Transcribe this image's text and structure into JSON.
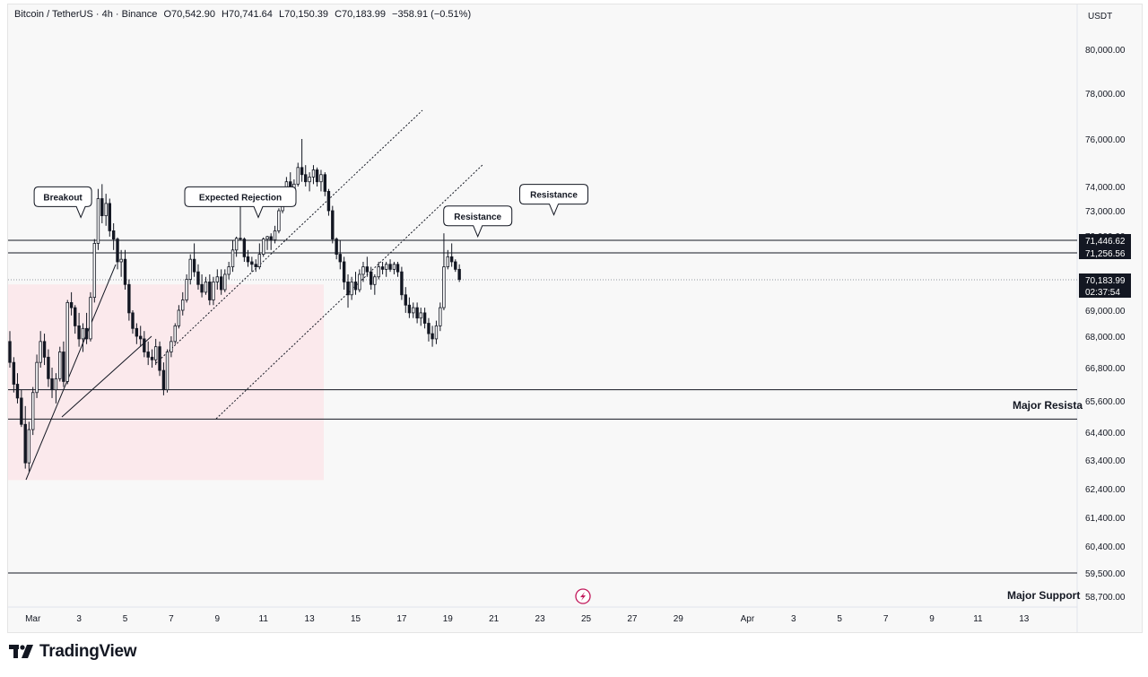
{
  "header": {
    "symbol": "Bitcoin / TetherUS · 4h · Binance",
    "open": "O70,542.90",
    "high": "H70,741.64",
    "low": "L70,150.39",
    "close": "C70,183.99",
    "change": "−358.91 (−0.51%)"
  },
  "currency": "USDT",
  "brand": "TradingView",
  "chart_data": {
    "type": "candlestick",
    "price_labels": [
      {
        "price": 80000,
        "label": "80,000.00"
      },
      {
        "price": 78000,
        "label": "78,000.00"
      },
      {
        "price": 76000,
        "label": "76,000.00"
      },
      {
        "price": 74000,
        "label": "74,000.00"
      },
      {
        "price": 73000,
        "label": "73,000.00"
      },
      {
        "price": 72000,
        "label": "72,000.00"
      },
      {
        "price": 69000,
        "label": "69,000.00"
      },
      {
        "price": 68000,
        "label": "68,000.00"
      },
      {
        "price": 66800,
        "label": "66,800.00"
      },
      {
        "price": 65600,
        "label": "65,600.00"
      },
      {
        "price": 64400,
        "label": "64,400.00"
      },
      {
        "price": 63400,
        "label": "63,400.00"
      },
      {
        "price": 62400,
        "label": "62,400.00"
      },
      {
        "price": 61400,
        "label": "61,400.00"
      },
      {
        "price": 60400,
        "label": "60,400.00"
      },
      {
        "price": 59500,
        "label": "59,500.00"
      },
      {
        "price": 58700,
        "label": "58,700.00"
      }
    ],
    "x_ticks": [
      {
        "day": 1,
        "label": "Mar"
      },
      {
        "day": 3,
        "label": "3"
      },
      {
        "day": 5,
        "label": "5"
      },
      {
        "day": 7,
        "label": "7"
      },
      {
        "day": 9,
        "label": "9"
      },
      {
        "day": 11,
        "label": "11"
      },
      {
        "day": 13,
        "label": "13"
      },
      {
        "day": 15,
        "label": "15"
      },
      {
        "day": 17,
        "label": "17"
      },
      {
        "day": 19,
        "label": "19"
      },
      {
        "day": 21,
        "label": "21"
      },
      {
        "day": 23,
        "label": "23"
      },
      {
        "day": 25,
        "label": "25"
      },
      {
        "day": 27,
        "label": "27"
      },
      {
        "day": 29,
        "label": "29"
      },
      {
        "day": 32,
        "label": "Apr"
      },
      {
        "day": 34,
        "label": "3"
      },
      {
        "day": 36,
        "label": "5"
      },
      {
        "day": 38,
        "label": "7"
      },
      {
        "day": 40,
        "label": "9"
      },
      {
        "day": 42,
        "label": "11"
      },
      {
        "day": 44,
        "label": "13"
      }
    ],
    "levels": [
      {
        "price": 71446.62,
        "label": "71,446.62"
      },
      {
        "price": 71256.56,
        "label": "71,256.56"
      }
    ],
    "last_price": {
      "price": 70183.99,
      "label": "70,183.99",
      "countdown": "02:37:54"
    },
    "zones": [
      {
        "name": "Major Resistance",
        "label": "Major Resista",
        "top": 66000,
        "bottom": 64900
      },
      {
        "name": "Major Support",
        "label": "Major Support",
        "price": 59500
      }
    ],
    "annotations": [
      {
        "text": "Breakout",
        "day": 2.3,
        "price": 72700
      },
      {
        "text": "Expected Rejection",
        "day": 10.0,
        "price": 72700
      },
      {
        "text": "Resistance",
        "day": 20.3,
        "price": 71800
      },
      {
        "text": "Resistance",
        "day": 23.6,
        "price": 72800
      }
    ],
    "candles": [
      [
        0.0,
        67800,
        68200,
        66800,
        67000
      ],
      [
        0.17,
        67000,
        67200,
        65900,
        66200
      ],
      [
        0.33,
        66200,
        66600,
        65500,
        65700
      ],
      [
        0.5,
        65700,
        66000,
        64600,
        64700
      ],
      [
        0.67,
        64700,
        65400,
        63100,
        63300
      ],
      [
        0.83,
        63300,
        64800,
        63000,
        64500
      ],
      [
        1.0,
        64500,
        66100,
        64300,
        65900
      ],
      [
        1.17,
        65900,
        67300,
        65700,
        67000
      ],
      [
        1.33,
        67000,
        68200,
        66800,
        67800
      ],
      [
        1.5,
        67800,
        68100,
        66900,
        67200
      ],
      [
        1.67,
        67200,
        67500,
        66100,
        66400
      ],
      [
        1.83,
        66400,
        66800,
        65700,
        66000
      ],
      [
        2.0,
        66000,
        66600,
        65500,
        66400
      ],
      [
        2.17,
        66400,
        67600,
        66300,
        67400
      ],
      [
        2.33,
        67400,
        67800,
        66100,
        66300
      ],
      [
        2.5,
        66300,
        69400,
        66200,
        69300
      ],
      [
        2.67,
        69300,
        69700,
        68800,
        69100
      ],
      [
        2.83,
        69100,
        69200,
        68100,
        68400
      ],
      [
        3.0,
        68400,
        68900,
        67600,
        67900
      ],
      [
        3.17,
        67900,
        68500,
        67400,
        68300
      ],
      [
        3.33,
        68300,
        68900,
        67700,
        67900
      ],
      [
        3.5,
        67900,
        69700,
        67800,
        69500
      ],
      [
        3.67,
        69500,
        71600,
        69300,
        71400
      ],
      [
        3.83,
        71400,
        73900,
        71300,
        73500
      ],
      [
        4.0,
        73500,
        74100,
        72500,
        72800
      ],
      [
        4.17,
        72800,
        73700,
        72400,
        73300
      ],
      [
        4.33,
        73300,
        73500,
        71900,
        72200
      ],
      [
        4.5,
        72200,
        72500,
        71300,
        71600
      ],
      [
        4.67,
        71600,
        71800,
        70600,
        70900
      ],
      [
        4.83,
        70900,
        71300,
        70300,
        71000
      ],
      [
        5.0,
        71000,
        71300,
        69800,
        70000
      ],
      [
        5.17,
        70000,
        70200,
        68600,
        68900
      ],
      [
        5.33,
        68900,
        69000,
        68100,
        68300
      ],
      [
        5.5,
        68300,
        68500,
        67700,
        68000
      ],
      [
        5.67,
        68000,
        68400,
        67600,
        67900
      ],
      [
        5.83,
        67900,
        68200,
        67200,
        67400
      ],
      [
        6.0,
        67400,
        67800,
        66900,
        67200
      ],
      [
        6.17,
        67200,
        67500,
        66800,
        67100
      ],
      [
        6.33,
        67100,
        67900,
        66900,
        67600
      ],
      [
        6.5,
        67600,
        67800,
        66500,
        66700
      ],
      [
        6.67,
        66700,
        67000,
        65800,
        66000
      ],
      [
        6.83,
        66000,
        67500,
        65900,
        67400
      ],
      [
        7.0,
        67400,
        68000,
        67200,
        67800
      ],
      [
        7.17,
        67800,
        68500,
        67700,
        68400
      ],
      [
        7.33,
        68400,
        69200,
        68300,
        69000
      ],
      [
        7.5,
        69000,
        69700,
        68800,
        69400
      ],
      [
        7.67,
        69400,
        70400,
        69300,
        70200
      ],
      [
        7.83,
        70200,
        71200,
        70000,
        71000
      ],
      [
        8.0,
        71000,
        71400,
        70300,
        70500
      ],
      [
        8.17,
        70500,
        70800,
        69800,
        70000
      ],
      [
        8.33,
        70000,
        70400,
        69500,
        69700
      ],
      [
        8.5,
        69700,
        70300,
        69600,
        70100
      ],
      [
        8.67,
        70100,
        70400,
        69200,
        69400
      ],
      [
        8.83,
        69400,
        70300,
        69200,
        70100
      ],
      [
        9.0,
        70100,
        70600,
        69800,
        70300
      ],
      [
        9.17,
        70300,
        70600,
        69600,
        69800
      ],
      [
        9.33,
        69800,
        70600,
        69700,
        70400
      ],
      [
        9.5,
        70400,
        70900,
        70200,
        70700
      ],
      [
        9.67,
        70700,
        71500,
        70500,
        71300
      ],
      [
        9.83,
        71300,
        71900,
        71100,
        71700
      ],
      [
        10.0,
        71700,
        73900,
        71500,
        71600
      ],
      [
        10.17,
        71600,
        71800,
        70900,
        71100
      ],
      [
        10.33,
        71100,
        71300,
        70700,
        70900
      ],
      [
        10.5,
        70900,
        71100,
        70500,
        70800
      ],
      [
        10.67,
        70800,
        71000,
        70500,
        70700
      ],
      [
        10.83,
        70700,
        71400,
        70600,
        71200
      ],
      [
        11.0,
        71200,
        71800,
        71100,
        71600
      ],
      [
        11.17,
        71600,
        72000,
        71300,
        71900
      ],
      [
        11.33,
        71900,
        72100,
        71300,
        71500
      ],
      [
        11.5,
        71500,
        72400,
        71400,
        72200
      ],
      [
        11.67,
        72200,
        73100,
        72100,
        73000
      ],
      [
        11.83,
        73000,
        73900,
        72900,
        73700
      ],
      [
        12.0,
        73700,
        74400,
        73500,
        74200
      ],
      [
        12.17,
        74200,
        74600,
        73600,
        73800
      ],
      [
        12.33,
        73800,
        74300,
        73500,
        74100
      ],
      [
        12.5,
        74100,
        75000,
        74000,
        74800
      ],
      [
        12.67,
        74800,
        76000,
        74200,
        74500
      ],
      [
        12.83,
        74500,
        74900,
        74000,
        74200
      ],
      [
        13.0,
        74200,
        74600,
        73800,
        74400
      ],
      [
        13.17,
        74400,
        74900,
        74100,
        74700
      ],
      [
        13.33,
        74700,
        74800,
        74000,
        74200
      ],
      [
        13.5,
        74200,
        74700,
        73800,
        74500
      ],
      [
        13.67,
        74500,
        74600,
        73600,
        73800
      ],
      [
        13.83,
        73800,
        73900,
        72800,
        73000
      ],
      [
        14.0,
        73000,
        73200,
        71400,
        71600
      ],
      [
        14.17,
        71600,
        71800,
        71000,
        71200
      ],
      [
        14.33,
        71200,
        71500,
        70600,
        70900
      ],
      [
        14.5,
        70900,
        71100,
        69800,
        70100
      ],
      [
        14.67,
        70100,
        70400,
        69100,
        69600
      ],
      [
        14.83,
        69600,
        70300,
        69400,
        70100
      ],
      [
        15.0,
        70100,
        70500,
        69600,
        69800
      ],
      [
        15.17,
        69800,
        70600,
        69700,
        70400
      ],
      [
        15.33,
        70400,
        70900,
        70100,
        70700
      ],
      [
        15.5,
        70700,
        71100,
        70300,
        70500
      ],
      [
        15.67,
        70500,
        70700,
        69800,
        70000
      ],
      [
        15.83,
        70000,
        70400,
        69600,
        70300
      ],
      [
        16.0,
        70300,
        70900,
        70200,
        70700
      ],
      [
        16.17,
        70700,
        70900,
        70400,
        70600
      ],
      [
        16.33,
        70600,
        70900,
        70300,
        70800
      ],
      [
        16.5,
        70800,
        71000,
        70500,
        70600
      ],
      [
        16.67,
        70600,
        70900,
        70400,
        70800
      ],
      [
        16.83,
        70800,
        70900,
        70300,
        70500
      ],
      [
        17.0,
        70500,
        70700,
        69400,
        69600
      ],
      [
        17.17,
        69600,
        69900,
        68900,
        69200
      ],
      [
        17.33,
        69200,
        69500,
        68700,
        68900
      ],
      [
        17.5,
        68900,
        69300,
        68700,
        69100
      ],
      [
        17.67,
        69100,
        69300,
        68500,
        68700
      ],
      [
        17.83,
        68700,
        69100,
        68400,
        68900
      ],
      [
        18.0,
        68900,
        69100,
        68300,
        68500
      ],
      [
        18.17,
        68500,
        68700,
        67800,
        68100
      ],
      [
        18.33,
        68100,
        68400,
        67600,
        67900
      ],
      [
        18.5,
        67900,
        68600,
        67700,
        68400
      ],
      [
        18.67,
        68400,
        69300,
        68200,
        69100
      ],
      [
        18.83,
        69100,
        72100,
        69000,
        70700
      ],
      [
        19.0,
        70700,
        71300,
        70600,
        71100
      ],
      [
        19.17,
        71100,
        71400,
        70700,
        70900
      ],
      [
        19.33,
        70900,
        71000,
        70500,
        70600
      ],
      [
        19.5,
        70600,
        70800,
        70100,
        70200
      ]
    ]
  }
}
